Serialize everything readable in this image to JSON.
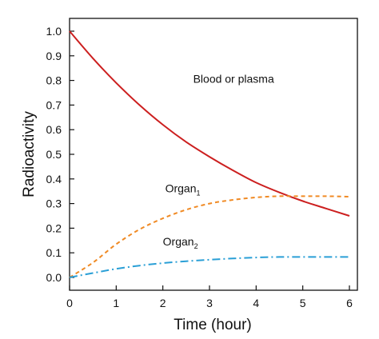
{
  "chart_data": {
    "type": "line",
    "title": "",
    "xlabel": "Time (hour)",
    "ylabel": "Radioactivity",
    "xlim": [
      0,
      6
    ],
    "ylim": [
      0,
      1.05
    ],
    "x_ticks": [
      "0",
      "1",
      "2",
      "3",
      "4",
      "5",
      "6"
    ],
    "y_ticks": [
      "0.0",
      "0.1",
      "0.2",
      "0.3",
      "0.4",
      "0.5",
      "0.6",
      "0.7",
      "0.8",
      "0.9",
      "1.0"
    ],
    "grid": false,
    "legend": "none",
    "x": [
      0,
      0.5,
      1,
      1.5,
      2,
      2.5,
      3,
      3.5,
      4,
      4.5,
      5,
      5.5,
      6
    ],
    "series": [
      {
        "values": [
          1.0,
          0.89,
          0.79,
          0.7,
          0.62,
          0.55,
          0.49,
          0.435,
          0.385,
          0.345,
          0.31,
          0.28,
          0.25
        ],
        "color": "#cc1f1f",
        "style": "solid"
      },
      {
        "values": [
          0.0,
          0.06,
          0.135,
          0.195,
          0.24,
          0.275,
          0.3,
          0.315,
          0.325,
          0.33,
          0.33,
          0.33,
          0.328
        ],
        "color": "#f08a24",
        "style": "dashed"
      },
      {
        "values": [
          0.0,
          0.018,
          0.035,
          0.048,
          0.058,
          0.066,
          0.072,
          0.077,
          0.081,
          0.083,
          0.083,
          0.083,
          0.083
        ],
        "color": "#2a9fd6",
        "style": "dashdot"
      }
    ],
    "annotations": [
      {
        "text": "Blood or plasma",
        "x": 2.65,
        "y": 0.79,
        "subscript": ""
      },
      {
        "text": "Organ",
        "x": 2.05,
        "y": 0.345,
        "subscript": "1"
      },
      {
        "text": "Organ",
        "x": 2.0,
        "y": 0.13,
        "subscript": "2"
      }
    ]
  }
}
